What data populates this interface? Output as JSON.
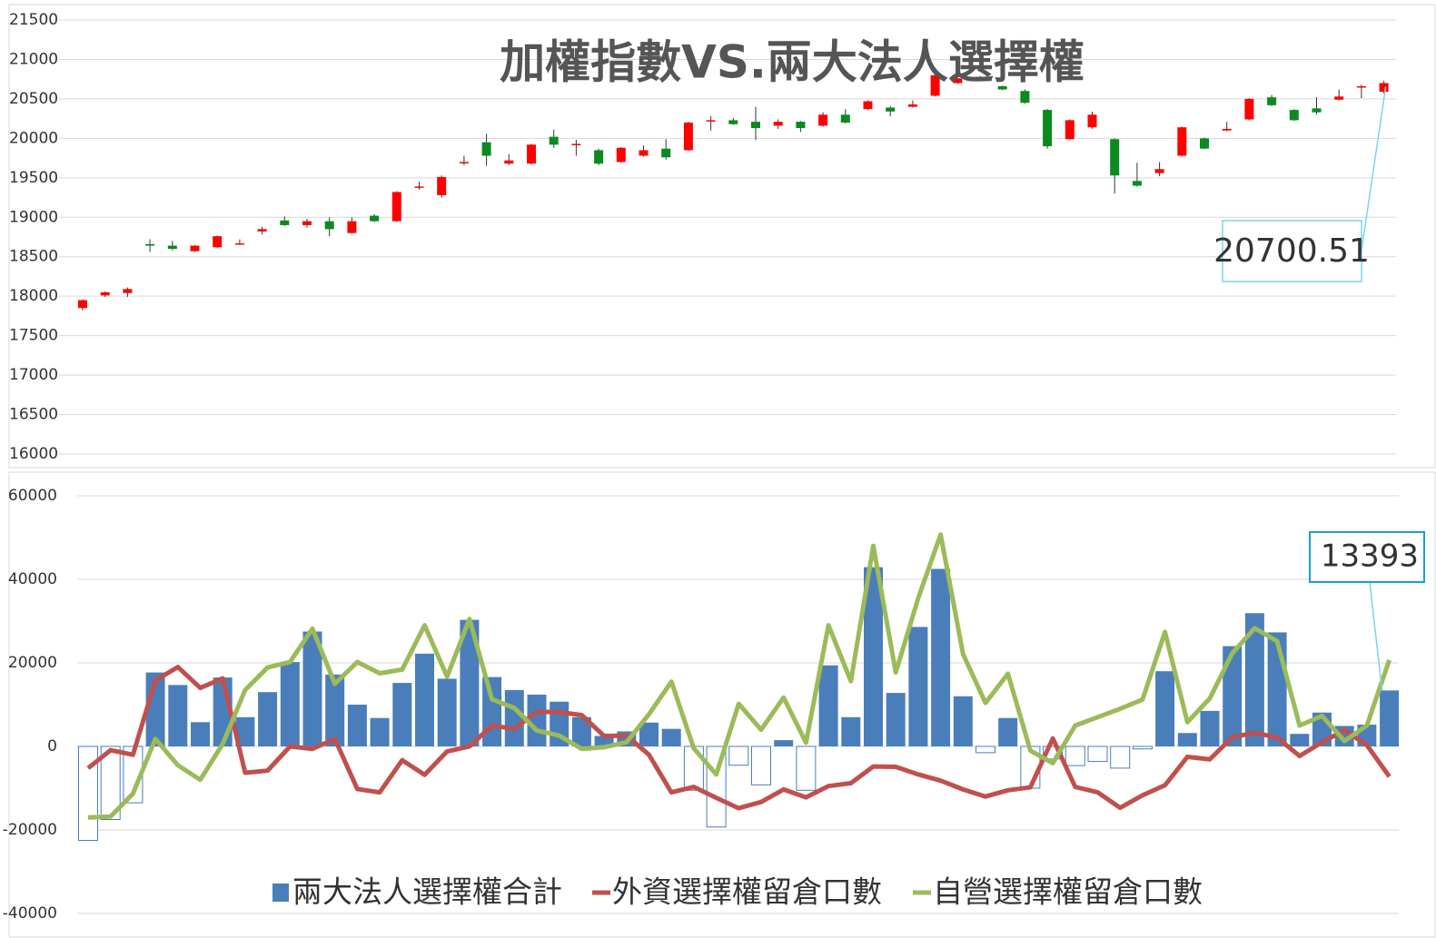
{
  "chart_data": [
    {
      "type": "candlestick",
      "title": "加權指數VS.兩大法人選擇權",
      "open": [
        17850,
        18010,
        18040,
        18660,
        18640,
        18570,
        18620,
        18670,
        18820,
        18960,
        18900,
        18950,
        18800,
        19020,
        18950,
        19390,
        19280,
        19700,
        19950,
        19680,
        19680,
        20020,
        19930,
        19850,
        19700,
        19780,
        19870,
        19850,
        20230,
        20230,
        20210,
        20160,
        20210,
        20160,
        20300,
        20370,
        20390,
        20400,
        20540,
        20700,
        20740,
        20660,
        20600,
        20360,
        19990,
        20140,
        19990,
        19460,
        19560,
        19780,
        20000,
        20100,
        20240,
        20520,
        20360,
        20380,
        20490,
        20660,
        20590
      ],
      "high": [
        17960,
        18060,
        18110,
        18720,
        18700,
        18650,
        18770,
        18720,
        18880,
        19010,
        18980,
        19000,
        19000,
        19040,
        19330,
        19450,
        19530,
        19780,
        20060,
        19800,
        19930,
        20110,
        19980,
        19870,
        19890,
        19910,
        19990,
        20210,
        20280,
        20260,
        20400,
        20240,
        20220,
        20330,
        20370,
        20480,
        20410,
        20480,
        20810,
        20770,
        20790,
        20670,
        20620,
        20370,
        20240,
        20340,
        20000,
        19690,
        19700,
        20150,
        20010,
        20210,
        20510,
        20550,
        20370,
        20520,
        20620,
        20680,
        20730
      ],
      "low": [
        17820,
        17990,
        17990,
        18560,
        18580,
        18560,
        18610,
        18650,
        18780,
        18890,
        18870,
        18760,
        18790,
        18940,
        18940,
        19350,
        19250,
        19660,
        19650,
        19660,
        19670,
        19880,
        19780,
        19660,
        19690,
        19770,
        19730,
        19840,
        20100,
        20170,
        19980,
        20120,
        20080,
        20150,
        20190,
        20360,
        20280,
        20390,
        20530,
        20690,
        20730,
        20610,
        20440,
        19870,
        19980,
        20120,
        19300,
        19390,
        19520,
        19770,
        19860,
        20090,
        20230,
        20410,
        20220,
        20300,
        20480,
        20510,
        20570
      ],
      "close": [
        17950,
        18050,
        18090,
        18640,
        18600,
        18640,
        18760,
        18670,
        18850,
        18900,
        18950,
        18850,
        18950,
        18950,
        19320,
        19390,
        19510,
        19700,
        19780,
        19720,
        19920,
        19920,
        19930,
        19680,
        19880,
        19850,
        19760,
        20200,
        20230,
        20180,
        20130,
        20210,
        20130,
        20300,
        20200,
        20470,
        20340,
        20430,
        20800,
        20760,
        20780,
        20620,
        20450,
        19900,
        20230,
        20300,
        19530,
        19400,
        19610,
        20140,
        19870,
        20120,
        20500,
        20420,
        20230,
        20330,
        20530,
        20660,
        20700.51
      ],
      "up_color": "#ff0000",
      "down_color": "#0a8a1f",
      "ylim": [
        16000,
        21500
      ],
      "yticks": [
        16000,
        16500,
        17000,
        17500,
        18000,
        18500,
        19000,
        19500,
        20000,
        20500,
        21000,
        21500
      ],
      "grid": true
    },
    {
      "type": "bar-line",
      "legend": "bottom",
      "invert_if_negative": true,
      "series": [
        {
          "name": "兩大法人選擇權合計",
          "type": "bar",
          "color": "#4a7ebb",
          "values": [
            -22500,
            -17500,
            -13500,
            17700,
            14700,
            5800,
            16500,
            7000,
            13000,
            20200,
            27500,
            17200,
            10000,
            6800,
            15200,
            22200,
            16200,
            30300,
            16600,
            13500,
            12400,
            10700,
            7000,
            2500,
            3600,
            5700,
            4200,
            -10500,
            -19300,
            -4500,
            -9200,
            1500,
            -10500,
            19400,
            7000,
            42900,
            12800,
            28600,
            42500,
            12000,
            -1500,
            6800,
            -10000,
            -3000,
            -4600,
            -3600,
            -5200,
            -600,
            18000,
            3200,
            8500,
            24000,
            31900,
            27300,
            3000,
            8100,
            4900,
            5200,
            13393
          ]
        },
        {
          "name": "外資選擇權留倉口數",
          "type": "line",
          "color": "#c0504d",
          "values": [
            -5200,
            -900,
            -2000,
            15800,
            19000,
            14000,
            16300,
            -6300,
            -5800,
            0,
            -600,
            1800,
            -10200,
            -11000,
            -3300,
            -6800,
            -1200,
            0,
            5000,
            4200,
            8300,
            8200,
            7500,
            2500,
            2600,
            -2000,
            -11000,
            -9700,
            -12300,
            -14800,
            -13300,
            -10300,
            -12200,
            -9500,
            -8800,
            -4800,
            -4900,
            -6700,
            -8200,
            -10300,
            -12000,
            -10500,
            -9800,
            1900,
            -9700,
            -11000,
            -14700,
            -11700,
            -9300,
            -2500,
            -3100,
            2200,
            3300,
            2100,
            -2300,
            1000,
            3900,
            300,
            -7200
          ]
        },
        {
          "name": "自營選擇權留倉口數",
          "type": "line",
          "color": "#9bbb59",
          "values": [
            -17000,
            -16800,
            -11300,
            1800,
            -4500,
            -8000,
            600,
            13500,
            18900,
            20200,
            28200,
            15000,
            20200,
            17500,
            18400,
            29000,
            16700,
            30500,
            11300,
            9200,
            3800,
            2600,
            -600,
            -200,
            1000,
            7700,
            15500,
            -500,
            -6700,
            10200,
            4000,
            11700,
            900,
            29000,
            15600,
            48000,
            17700,
            35500,
            50700,
            22100,
            10400,
            17400,
            -1000,
            -4000,
            5000,
            7000,
            9000,
            11200,
            27400,
            5800,
            11500,
            22300,
            28300,
            25200,
            5000,
            7300,
            1300,
            5000,
            20700
          ]
        }
      ],
      "ylim": [
        -40000,
        60000
      ],
      "yticks": [
        -40000,
        -20000,
        0,
        20000,
        40000,
        60000
      ],
      "grid": true
    }
  ]
}
